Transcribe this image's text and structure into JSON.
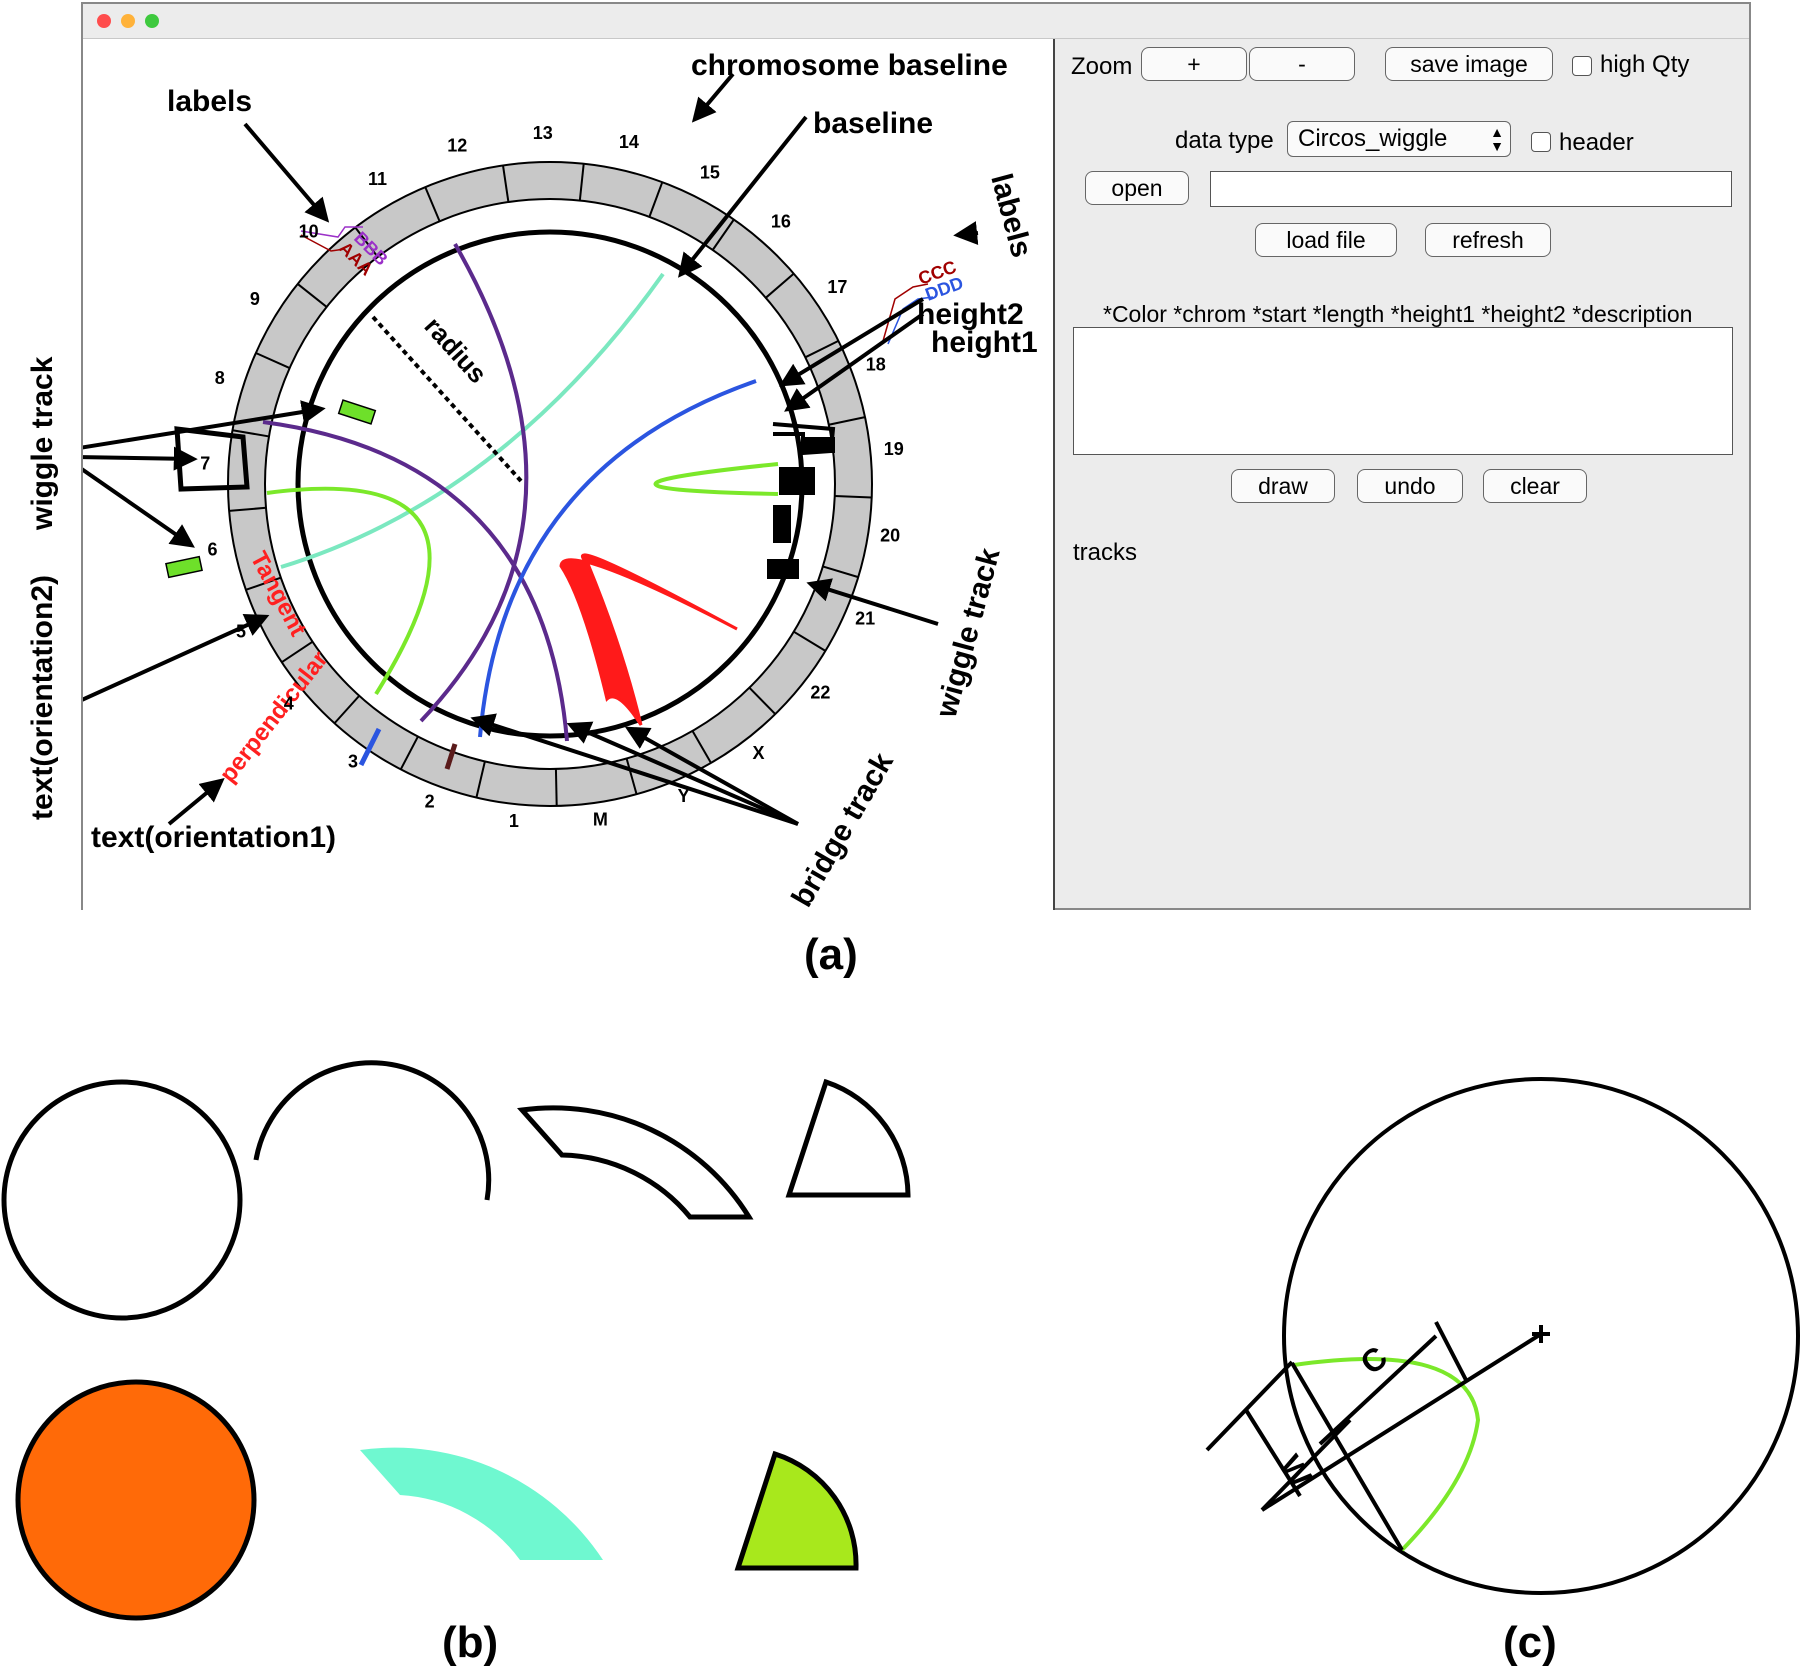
{
  "panel_a": {
    "caption": "(a)",
    "window": {
      "controls": {
        "zoom_label": "Zoom",
        "zoom_in": "+",
        "zoom_out": "-",
        "save_image": "save image",
        "high_qty": "high Qty",
        "data_type_label": "data type",
        "data_type_value": "Circos_wiggle",
        "header": "header",
        "open": "open",
        "file_path_value": "",
        "load_file": "load file",
        "refresh": "refresh",
        "format_hint": "*Color *chrom *start *length *height1 *height2 *description",
        "data_text_value": "",
        "draw": "draw",
        "undo": "undo",
        "clear": "clear",
        "tracks_label": "tracks"
      },
      "diagram": {
        "chromosomes": [
          "1",
          "2",
          "3",
          "4",
          "5",
          "6",
          "7",
          "8",
          "9",
          "10",
          "11",
          "12",
          "13",
          "14",
          "15",
          "16",
          "17",
          "18",
          "19",
          "20",
          "21",
          "22",
          "X",
          "Y",
          "M"
        ],
        "labels": [
          "AAA",
          "BBB",
          "CCC",
          "DDD"
        ],
        "annotations": {
          "chromosome_baseline": "chromosome baseline",
          "baseline": "baseline",
          "labels_left": "labels",
          "labels_right": "labels",
          "height2": "height2",
          "height1": "height1",
          "radius": "radius",
          "wiggle_track_left": "wiggle track",
          "wiggle_track_right": "wiggle track",
          "text_orientation2": "text(orientation2)",
          "text_orientation1": "text(orientation1)",
          "tangent": "Tangent",
          "perpendicular": "perpendicular",
          "bridge_track": "bridge track"
        },
        "colors": {
          "ring": "#c8c8c8",
          "aquamarine": "#7be8c0",
          "purple": "#5b2a8c",
          "blue": "#2b55e0",
          "lime": "#7be82a",
          "red": "#ff1a1a",
          "annotation_red": "#ff2020",
          "label_purple": "#9b30c8",
          "label_red": "#a00000",
          "label_blue": "#2b55e0",
          "wiggle_green": "#6ee02a"
        }
      }
    }
  },
  "panel_b": {
    "caption": "(b)",
    "colors": {
      "orange": "#ff6a08",
      "aquamarine": "#6ff8d0",
      "lime": "#a8e81c"
    }
  },
  "panel_c": {
    "caption": "(c)",
    "labels": {
      "c": "C",
      "w": "W"
    },
    "colors": {
      "curve": "#7be82a"
    }
  }
}
